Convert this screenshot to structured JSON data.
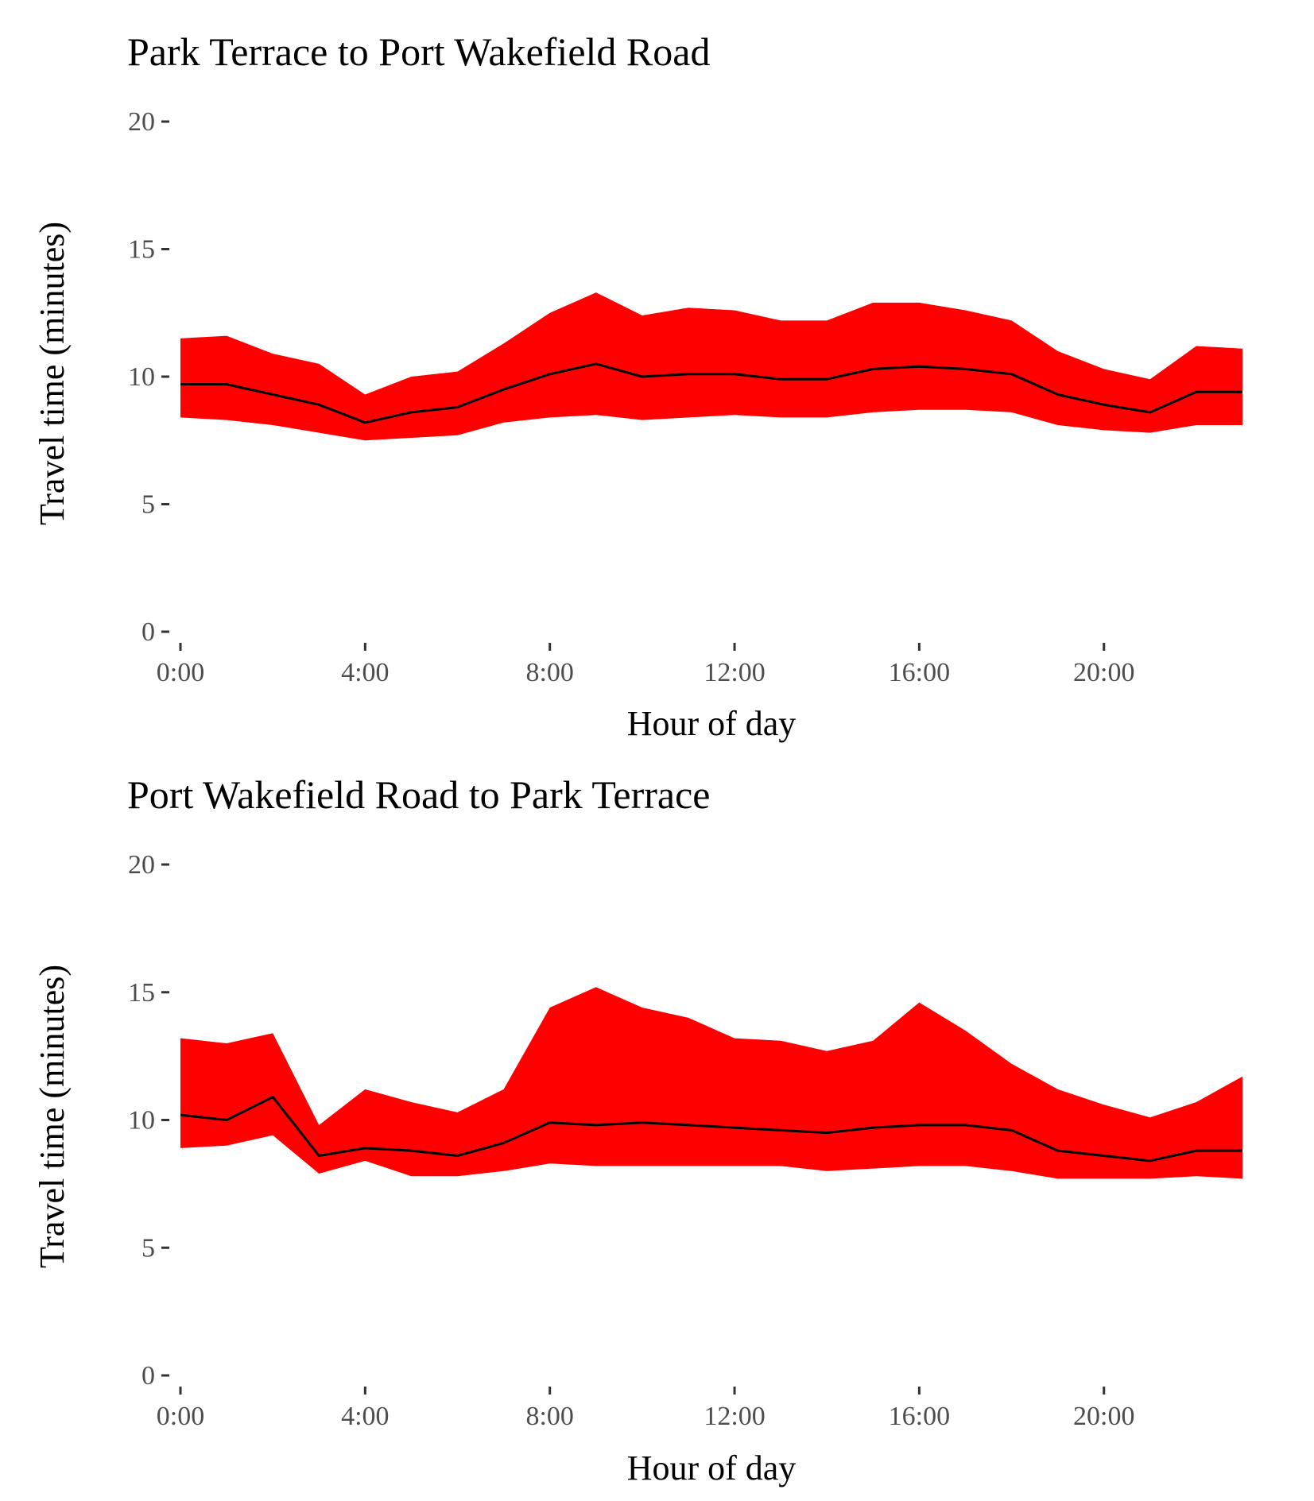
{
  "chart_data": [
    {
      "type": "area",
      "title": "Park Terrace to Port Wakefield Road",
      "xlabel": "Hour of day",
      "ylabel": "Travel time (minutes)",
      "x": [
        0,
        1,
        2,
        3,
        4,
        5,
        6,
        7,
        8,
        9,
        10,
        11,
        12,
        13,
        14,
        15,
        16,
        17,
        18,
        19,
        20,
        21,
        22,
        23
      ],
      "xlim": [
        0,
        23
      ],
      "ylim": [
        0,
        20
      ],
      "x_ticks": [
        0,
        4,
        8,
        12,
        16,
        20
      ],
      "x_tick_labels": [
        "0:00",
        "4:00",
        "8:00",
        "12:00",
        "16:00",
        "20:00"
      ],
      "y_ticks": [
        0,
        5,
        10,
        15,
        20
      ],
      "y_tick_labels": [
        "0",
        "5",
        "10",
        "15",
        "20"
      ],
      "grid": false,
      "band_color": "#ff0000",
      "line_color": "#000000",
      "series": [
        {
          "role": "upper",
          "values": [
            11.5,
            11.6,
            10.9,
            10.5,
            9.3,
            10.0,
            10.2,
            11.3,
            12.5,
            13.3,
            12.4,
            12.7,
            12.6,
            12.2,
            12.2,
            12.9,
            12.9,
            12.6,
            12.2,
            11.0,
            10.3,
            9.9,
            11.2,
            11.1
          ]
        },
        {
          "role": "median",
          "values": [
            9.7,
            9.7,
            9.3,
            8.9,
            8.2,
            8.6,
            8.8,
            9.5,
            10.1,
            10.5,
            10.0,
            10.1,
            10.1,
            9.9,
            9.9,
            10.3,
            10.4,
            10.3,
            10.1,
            9.3,
            8.9,
            8.6,
            9.4,
            9.4
          ]
        },
        {
          "role": "lower",
          "values": [
            8.4,
            8.3,
            8.1,
            7.8,
            7.5,
            7.6,
            7.7,
            8.2,
            8.4,
            8.5,
            8.3,
            8.4,
            8.5,
            8.4,
            8.4,
            8.6,
            8.7,
            8.7,
            8.6,
            8.1,
            7.9,
            7.8,
            8.1,
            8.1
          ]
        }
      ]
    },
    {
      "type": "area",
      "title": "Port Wakefield Road to Park Terrace",
      "xlabel": "Hour of day",
      "ylabel": "Travel time (minutes)",
      "x": [
        0,
        1,
        2,
        3,
        4,
        5,
        6,
        7,
        8,
        9,
        10,
        11,
        12,
        13,
        14,
        15,
        16,
        17,
        18,
        19,
        20,
        21,
        22,
        23
      ],
      "xlim": [
        0,
        23
      ],
      "ylim": [
        0,
        20
      ],
      "x_ticks": [
        0,
        4,
        8,
        12,
        16,
        20
      ],
      "x_tick_labels": [
        "0:00",
        "4:00",
        "8:00",
        "12:00",
        "16:00",
        "20:00"
      ],
      "y_ticks": [
        0,
        5,
        10,
        15,
        20
      ],
      "y_tick_labels": [
        "0",
        "5",
        "10",
        "15",
        "20"
      ],
      "grid": false,
      "band_color": "#ff0000",
      "line_color": "#000000",
      "series": [
        {
          "role": "upper",
          "values": [
            13.2,
            13.0,
            13.4,
            9.8,
            11.2,
            10.7,
            10.3,
            11.2,
            14.4,
            15.2,
            14.4,
            14.0,
            13.2,
            13.1,
            12.7,
            13.1,
            14.6,
            13.5,
            12.2,
            11.2,
            10.6,
            10.1,
            10.7,
            11.7
          ]
        },
        {
          "role": "median",
          "values": [
            10.2,
            10.0,
            10.9,
            8.6,
            8.9,
            8.8,
            8.6,
            9.1,
            9.9,
            9.8,
            9.9,
            9.8,
            9.7,
            9.6,
            9.5,
            9.7,
            9.8,
            9.8,
            9.6,
            8.8,
            8.6,
            8.4,
            8.8,
            8.8
          ]
        },
        {
          "role": "lower",
          "values": [
            8.9,
            9.0,
            9.4,
            7.9,
            8.4,
            7.8,
            7.8,
            8.0,
            8.3,
            8.2,
            8.2,
            8.2,
            8.2,
            8.2,
            8.0,
            8.1,
            8.2,
            8.2,
            8.0,
            7.7,
            7.7,
            7.7,
            7.8,
            7.7
          ]
        }
      ]
    }
  ]
}
